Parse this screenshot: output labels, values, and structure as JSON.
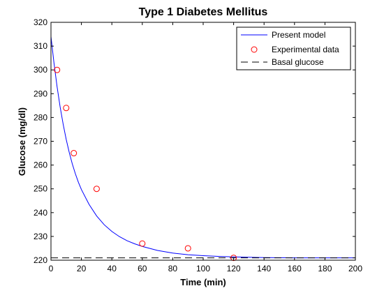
{
  "chart_data": {
    "type": "line",
    "title": "Type 1 Diabetes Mellitus",
    "xlabel": "Time (min)",
    "ylabel": "Glucose (mg/dl)",
    "xlim": [
      0,
      200
    ],
    "ylim": [
      220,
      320
    ],
    "xticks": [
      0,
      20,
      40,
      60,
      80,
      100,
      120,
      140,
      160,
      180,
      200
    ],
    "yticks": [
      220,
      230,
      240,
      250,
      260,
      270,
      280,
      290,
      300,
      310,
      320
    ],
    "grid": false,
    "legend_position": "top-right",
    "series": [
      {
        "name": "Present model",
        "kind": "line",
        "style": "solid",
        "color": "#0000ff",
        "x": [
          0,
          2,
          4,
          6,
          8,
          10,
          12,
          14,
          16,
          18,
          20,
          25,
          30,
          35,
          40,
          45,
          50,
          55,
          60,
          70,
          80,
          90,
          100,
          110,
          120,
          140,
          160,
          180,
          200
        ],
        "y": [
          314,
          302.8,
          293.0,
          284.5,
          277.2,
          270.8,
          265.3,
          260.5,
          256.4,
          252.8,
          249.7,
          243.5,
          238.6,
          234.9,
          232.1,
          229.9,
          228.2,
          226.9,
          225.8,
          224.1,
          223.0,
          222.3,
          221.9,
          221.6,
          221.4,
          221.1,
          221.0,
          221.0,
          221.0
        ]
      },
      {
        "name": "Experimental data",
        "kind": "scatter",
        "marker": "circle",
        "color": "#ff0000",
        "x": [
          4,
          10,
          15,
          30,
          60,
          90,
          120
        ],
        "y": [
          300,
          284,
          265,
          250,
          227,
          225,
          221
        ]
      },
      {
        "name": "Basal glucose",
        "kind": "line",
        "style": "dashed",
        "color": "#000000",
        "x": [
          0,
          200
        ],
        "y": [
          221,
          221
        ]
      }
    ]
  }
}
